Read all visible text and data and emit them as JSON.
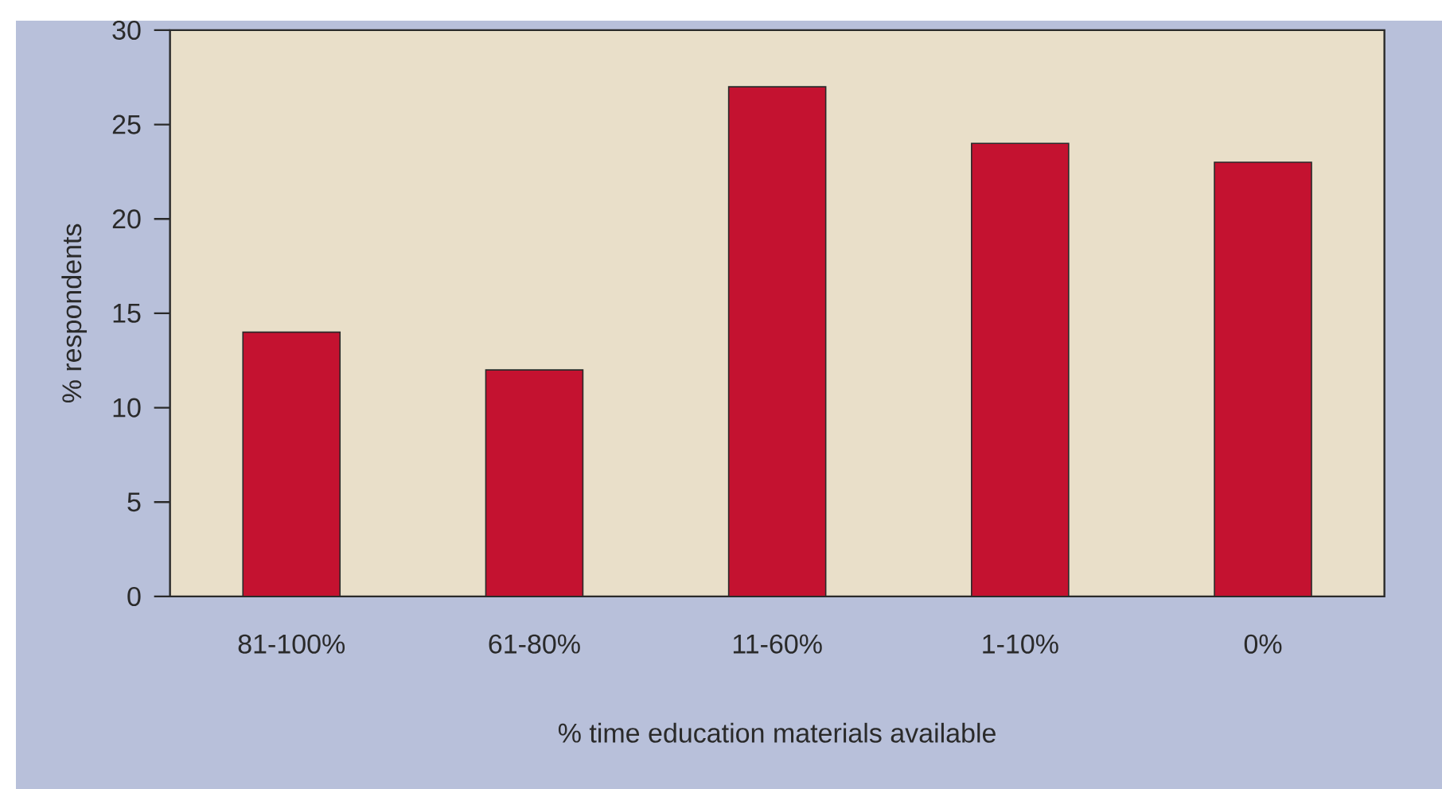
{
  "chart_data": {
    "type": "bar",
    "xlabel": "% time education materials available",
    "ylabel": "% respondents",
    "categories": [
      "81-100%",
      "61-80%",
      "11-60%",
      "1-10%",
      "0%"
    ],
    "values": [
      14,
      12,
      27,
      24,
      23
    ],
    "color": "#c41230",
    "ylim": [
      0,
      30
    ],
    "yticks": [
      0,
      5,
      10,
      15,
      20,
      25,
      30
    ]
  }
}
